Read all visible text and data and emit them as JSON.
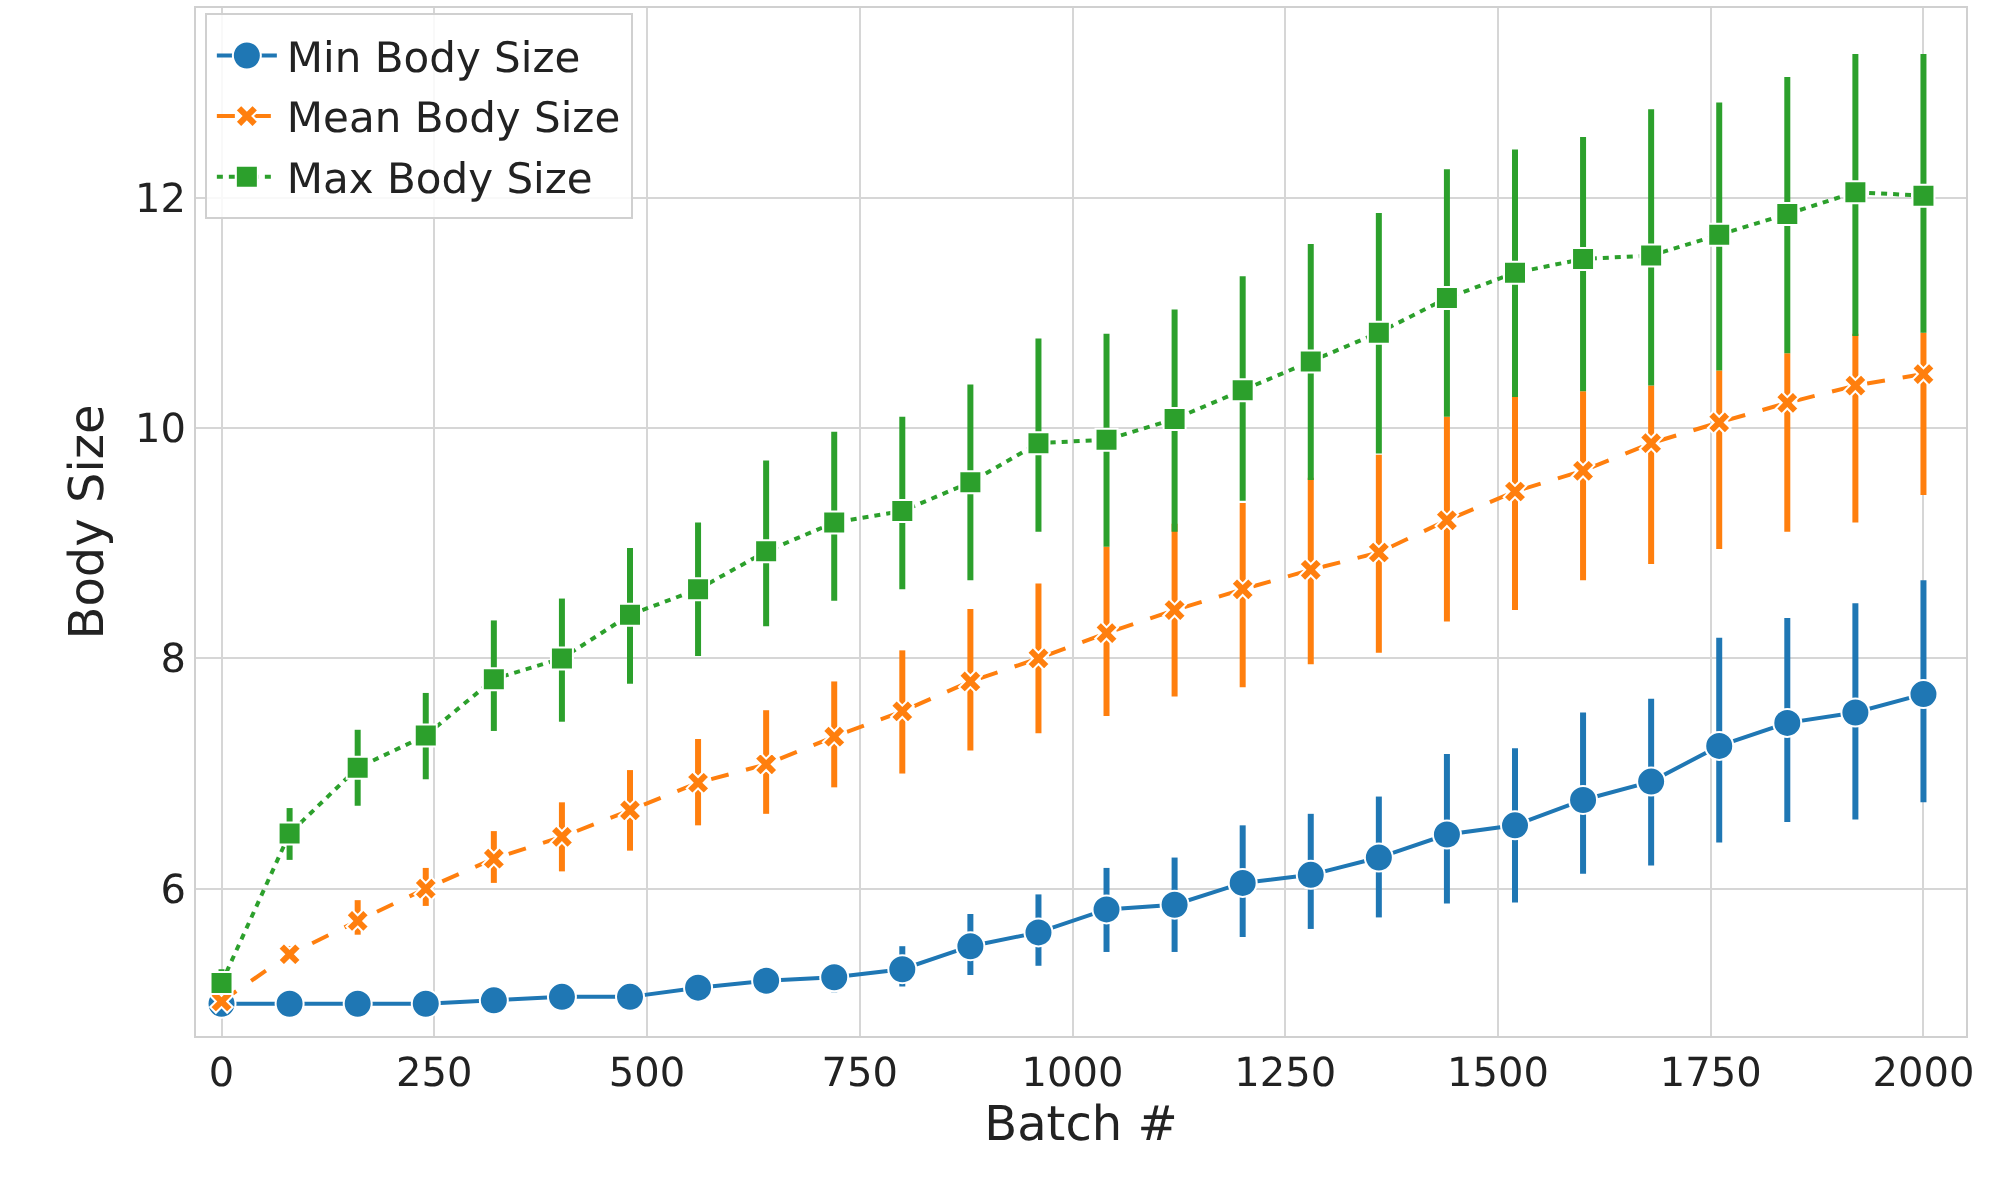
{
  "chart_data": {
    "type": "line",
    "xlabel": "Batch #",
    "ylabel": "Body Size",
    "x": [
      0,
      80,
      160,
      240,
      320,
      400,
      480,
      560,
      640,
      720,
      800,
      880,
      960,
      1040,
      1120,
      1200,
      1280,
      1360,
      1440,
      1520,
      1600,
      1680,
      1760,
      1840,
      1920,
      2000
    ],
    "xlim": [
      -30,
      2050
    ],
    "xticks": [
      0,
      250,
      500,
      750,
      1000,
      1250,
      1500,
      1750,
      2000
    ],
    "ylim": [
      4.72,
      13.65
    ],
    "yticks": [
      6,
      8,
      10,
      12
    ],
    "grid": true,
    "legend": "top left",
    "series": [
      {
        "name": "Min Body Size",
        "color": "#1f77b4",
        "marker": "circle",
        "line_style": "solid",
        "values": [
          5.0,
          5.0,
          5.0,
          5.0,
          5.03,
          5.06,
          5.06,
          5.14,
          5.2,
          5.23,
          5.3,
          5.5,
          5.62,
          5.82,
          5.86,
          6.05,
          6.12,
          6.27,
          6.47,
          6.55,
          6.77,
          6.93,
          7.24,
          7.44,
          7.53,
          7.69
        ],
        "errors": [
          null,
          null,
          null,
          null,
          null,
          null,
          null,
          [
            5.1,
            5.2
          ],
          [
            5.1,
            5.32
          ],
          [
            5.1,
            5.35
          ],
          [
            5.15,
            5.5
          ],
          [
            5.25,
            5.78
          ],
          [
            5.33,
            5.95
          ],
          [
            5.45,
            6.18
          ],
          [
            5.45,
            6.27
          ],
          [
            5.58,
            6.55
          ],
          [
            5.65,
            6.65
          ],
          [
            5.75,
            6.8
          ],
          [
            5.87,
            7.17
          ],
          [
            5.88,
            7.22
          ],
          [
            6.13,
            7.53
          ],
          [
            6.2,
            7.65
          ],
          [
            6.4,
            8.18
          ],
          [
            6.58,
            8.35
          ],
          [
            6.6,
            8.48
          ],
          [
            6.75,
            8.68
          ]
        ]
      },
      {
        "name": "Mean Body Size",
        "color": "#ff7f0e",
        "marker": "cross",
        "line_style": "dashed",
        "values": [
          5.02,
          5.43,
          5.72,
          6.0,
          6.26,
          6.45,
          6.68,
          6.92,
          7.08,
          7.32,
          7.54,
          7.8,
          8.0,
          8.22,
          8.42,
          8.6,
          8.77,
          8.92,
          9.2,
          9.45,
          9.63,
          9.87,
          10.05,
          10.22,
          10.37,
          10.47
        ],
        "errors": [
          null,
          [
            5.38,
            5.5
          ],
          [
            5.6,
            5.9
          ],
          [
            5.85,
            6.18
          ],
          [
            6.05,
            6.5
          ],
          [
            6.15,
            6.75
          ],
          [
            6.33,
            7.03
          ],
          [
            6.55,
            7.3
          ],
          [
            6.65,
            7.55
          ],
          [
            6.88,
            7.8
          ],
          [
            7.0,
            8.07
          ],
          [
            7.2,
            8.43
          ],
          [
            7.35,
            8.65
          ],
          [
            7.5,
            8.97
          ],
          [
            7.67,
            9.17
          ],
          [
            7.75,
            9.35
          ],
          [
            7.95,
            9.57
          ],
          [
            8.05,
            9.77
          ],
          [
            8.32,
            10.1
          ],
          [
            8.42,
            10.27
          ],
          [
            8.68,
            10.32
          ],
          [
            8.82,
            10.37
          ],
          [
            8.95,
            10.5
          ],
          [
            9.1,
            10.65
          ],
          [
            9.18,
            10.82
          ],
          [
            9.42,
            10.83
          ]
        ]
      },
      {
        "name": "Max Body Size",
        "color": "#2ca02c",
        "marker": "square",
        "line_style": "dotted",
        "values": [
          5.18,
          6.48,
          7.05,
          7.33,
          7.82,
          8.0,
          8.38,
          8.6,
          8.93,
          9.18,
          9.28,
          9.53,
          9.87,
          9.9,
          10.08,
          10.33,
          10.58,
          10.83,
          11.13,
          11.35,
          11.47,
          11.5,
          11.68,
          11.86,
          12.05,
          12.02
        ],
        "errors": [
          [
            5.1,
            5.3
          ],
          [
            6.25,
            6.7
          ],
          [
            6.72,
            7.38
          ],
          [
            6.95,
            7.7
          ],
          [
            7.37,
            8.33
          ],
          [
            7.45,
            8.52
          ],
          [
            7.78,
            8.96
          ],
          [
            8.02,
            9.18
          ],
          [
            8.28,
            9.72
          ],
          [
            8.5,
            9.97
          ],
          [
            8.6,
            10.1
          ],
          [
            8.68,
            10.38
          ],
          [
            9.1,
            10.78
          ],
          [
            8.97,
            10.82
          ],
          [
            9.1,
            11.03
          ],
          [
            9.37,
            11.32
          ],
          [
            9.55,
            11.6
          ],
          [
            9.78,
            11.87
          ],
          [
            10.1,
            12.25
          ],
          [
            10.27,
            12.42
          ],
          [
            10.32,
            12.53
          ],
          [
            10.37,
            12.77
          ],
          [
            10.5,
            12.83
          ],
          [
            10.65,
            13.05
          ],
          [
            10.8,
            13.25
          ],
          [
            10.83,
            13.25
          ]
        ]
      }
    ]
  }
}
